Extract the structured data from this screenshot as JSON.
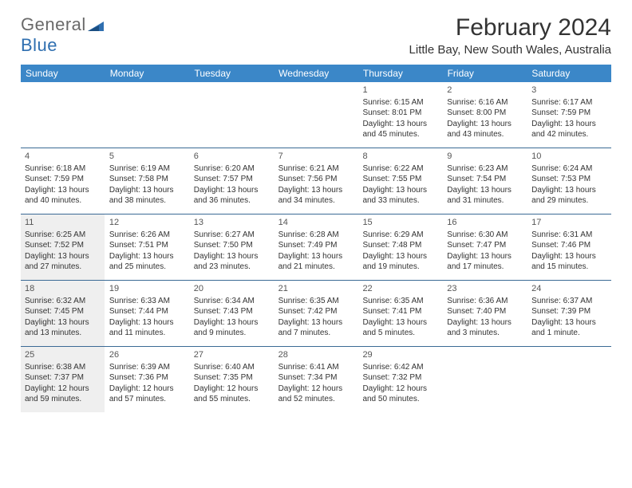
{
  "logo": {
    "text1": "General",
    "text2": "Blue"
  },
  "title": "February 2024",
  "location": "Little Bay, New South Wales, Australia",
  "colors": {
    "header_bg": "#3b87c8",
    "header_text": "#ffffff",
    "border": "#3b6a95",
    "shaded_bg": "#efefef",
    "body_text": "#333333",
    "logo_gray": "#6a6a6a",
    "logo_blue": "#2f6fb0"
  },
  "day_headers": [
    "Sunday",
    "Monday",
    "Tuesday",
    "Wednesday",
    "Thursday",
    "Friday",
    "Saturday"
  ],
  "weeks": [
    [
      {
        "shaded": false
      },
      {
        "shaded": false
      },
      {
        "shaded": false
      },
      {
        "shaded": false
      },
      {
        "num": "1",
        "shaded": false,
        "sunrise": "Sunrise: 6:15 AM",
        "sunset": "Sunset: 8:01 PM",
        "daylight1": "Daylight: 13 hours",
        "daylight2": "and 45 minutes."
      },
      {
        "num": "2",
        "shaded": false,
        "sunrise": "Sunrise: 6:16 AM",
        "sunset": "Sunset: 8:00 PM",
        "daylight1": "Daylight: 13 hours",
        "daylight2": "and 43 minutes."
      },
      {
        "num": "3",
        "shaded": false,
        "sunrise": "Sunrise: 6:17 AM",
        "sunset": "Sunset: 7:59 PM",
        "daylight1": "Daylight: 13 hours",
        "daylight2": "and 42 minutes."
      }
    ],
    [
      {
        "num": "4",
        "shaded": false,
        "sunrise": "Sunrise: 6:18 AM",
        "sunset": "Sunset: 7:59 PM",
        "daylight1": "Daylight: 13 hours",
        "daylight2": "and 40 minutes."
      },
      {
        "num": "5",
        "shaded": false,
        "sunrise": "Sunrise: 6:19 AM",
        "sunset": "Sunset: 7:58 PM",
        "daylight1": "Daylight: 13 hours",
        "daylight2": "and 38 minutes."
      },
      {
        "num": "6",
        "shaded": false,
        "sunrise": "Sunrise: 6:20 AM",
        "sunset": "Sunset: 7:57 PM",
        "daylight1": "Daylight: 13 hours",
        "daylight2": "and 36 minutes."
      },
      {
        "num": "7",
        "shaded": false,
        "sunrise": "Sunrise: 6:21 AM",
        "sunset": "Sunset: 7:56 PM",
        "daylight1": "Daylight: 13 hours",
        "daylight2": "and 34 minutes."
      },
      {
        "num": "8",
        "shaded": false,
        "sunrise": "Sunrise: 6:22 AM",
        "sunset": "Sunset: 7:55 PM",
        "daylight1": "Daylight: 13 hours",
        "daylight2": "and 33 minutes."
      },
      {
        "num": "9",
        "shaded": false,
        "sunrise": "Sunrise: 6:23 AM",
        "sunset": "Sunset: 7:54 PM",
        "daylight1": "Daylight: 13 hours",
        "daylight2": "and 31 minutes."
      },
      {
        "num": "10",
        "shaded": false,
        "sunrise": "Sunrise: 6:24 AM",
        "sunset": "Sunset: 7:53 PM",
        "daylight1": "Daylight: 13 hours",
        "daylight2": "and 29 minutes."
      }
    ],
    [
      {
        "num": "11",
        "shaded": true,
        "sunrise": "Sunrise: 6:25 AM",
        "sunset": "Sunset: 7:52 PM",
        "daylight1": "Daylight: 13 hours",
        "daylight2": "and 27 minutes."
      },
      {
        "num": "12",
        "shaded": false,
        "sunrise": "Sunrise: 6:26 AM",
        "sunset": "Sunset: 7:51 PM",
        "daylight1": "Daylight: 13 hours",
        "daylight2": "and 25 minutes."
      },
      {
        "num": "13",
        "shaded": false,
        "sunrise": "Sunrise: 6:27 AM",
        "sunset": "Sunset: 7:50 PM",
        "daylight1": "Daylight: 13 hours",
        "daylight2": "and 23 minutes."
      },
      {
        "num": "14",
        "shaded": false,
        "sunrise": "Sunrise: 6:28 AM",
        "sunset": "Sunset: 7:49 PM",
        "daylight1": "Daylight: 13 hours",
        "daylight2": "and 21 minutes."
      },
      {
        "num": "15",
        "shaded": false,
        "sunrise": "Sunrise: 6:29 AM",
        "sunset": "Sunset: 7:48 PM",
        "daylight1": "Daylight: 13 hours",
        "daylight2": "and 19 minutes."
      },
      {
        "num": "16",
        "shaded": false,
        "sunrise": "Sunrise: 6:30 AM",
        "sunset": "Sunset: 7:47 PM",
        "daylight1": "Daylight: 13 hours",
        "daylight2": "and 17 minutes."
      },
      {
        "num": "17",
        "shaded": false,
        "sunrise": "Sunrise: 6:31 AM",
        "sunset": "Sunset: 7:46 PM",
        "daylight1": "Daylight: 13 hours",
        "daylight2": "and 15 minutes."
      }
    ],
    [
      {
        "num": "18",
        "shaded": true,
        "sunrise": "Sunrise: 6:32 AM",
        "sunset": "Sunset: 7:45 PM",
        "daylight1": "Daylight: 13 hours",
        "daylight2": "and 13 minutes."
      },
      {
        "num": "19",
        "shaded": false,
        "sunrise": "Sunrise: 6:33 AM",
        "sunset": "Sunset: 7:44 PM",
        "daylight1": "Daylight: 13 hours",
        "daylight2": "and 11 minutes."
      },
      {
        "num": "20",
        "shaded": false,
        "sunrise": "Sunrise: 6:34 AM",
        "sunset": "Sunset: 7:43 PM",
        "daylight1": "Daylight: 13 hours",
        "daylight2": "and 9 minutes."
      },
      {
        "num": "21",
        "shaded": false,
        "sunrise": "Sunrise: 6:35 AM",
        "sunset": "Sunset: 7:42 PM",
        "daylight1": "Daylight: 13 hours",
        "daylight2": "and 7 minutes."
      },
      {
        "num": "22",
        "shaded": false,
        "sunrise": "Sunrise: 6:35 AM",
        "sunset": "Sunset: 7:41 PM",
        "daylight1": "Daylight: 13 hours",
        "daylight2": "and 5 minutes."
      },
      {
        "num": "23",
        "shaded": false,
        "sunrise": "Sunrise: 6:36 AM",
        "sunset": "Sunset: 7:40 PM",
        "daylight1": "Daylight: 13 hours",
        "daylight2": "and 3 minutes."
      },
      {
        "num": "24",
        "shaded": false,
        "sunrise": "Sunrise: 6:37 AM",
        "sunset": "Sunset: 7:39 PM",
        "daylight1": "Daylight: 13 hours",
        "daylight2": "and 1 minute."
      }
    ],
    [
      {
        "num": "25",
        "shaded": true,
        "sunrise": "Sunrise: 6:38 AM",
        "sunset": "Sunset: 7:37 PM",
        "daylight1": "Daylight: 12 hours",
        "daylight2": "and 59 minutes."
      },
      {
        "num": "26",
        "shaded": false,
        "sunrise": "Sunrise: 6:39 AM",
        "sunset": "Sunset: 7:36 PM",
        "daylight1": "Daylight: 12 hours",
        "daylight2": "and 57 minutes."
      },
      {
        "num": "27",
        "shaded": false,
        "sunrise": "Sunrise: 6:40 AM",
        "sunset": "Sunset: 7:35 PM",
        "daylight1": "Daylight: 12 hours",
        "daylight2": "and 55 minutes."
      },
      {
        "num": "28",
        "shaded": false,
        "sunrise": "Sunrise: 6:41 AM",
        "sunset": "Sunset: 7:34 PM",
        "daylight1": "Daylight: 12 hours",
        "daylight2": "and 52 minutes."
      },
      {
        "num": "29",
        "shaded": false,
        "sunrise": "Sunrise: 6:42 AM",
        "sunset": "Sunset: 7:32 PM",
        "daylight1": "Daylight: 12 hours",
        "daylight2": "and 50 minutes."
      },
      {
        "shaded": false
      },
      {
        "shaded": false
      }
    ]
  ]
}
